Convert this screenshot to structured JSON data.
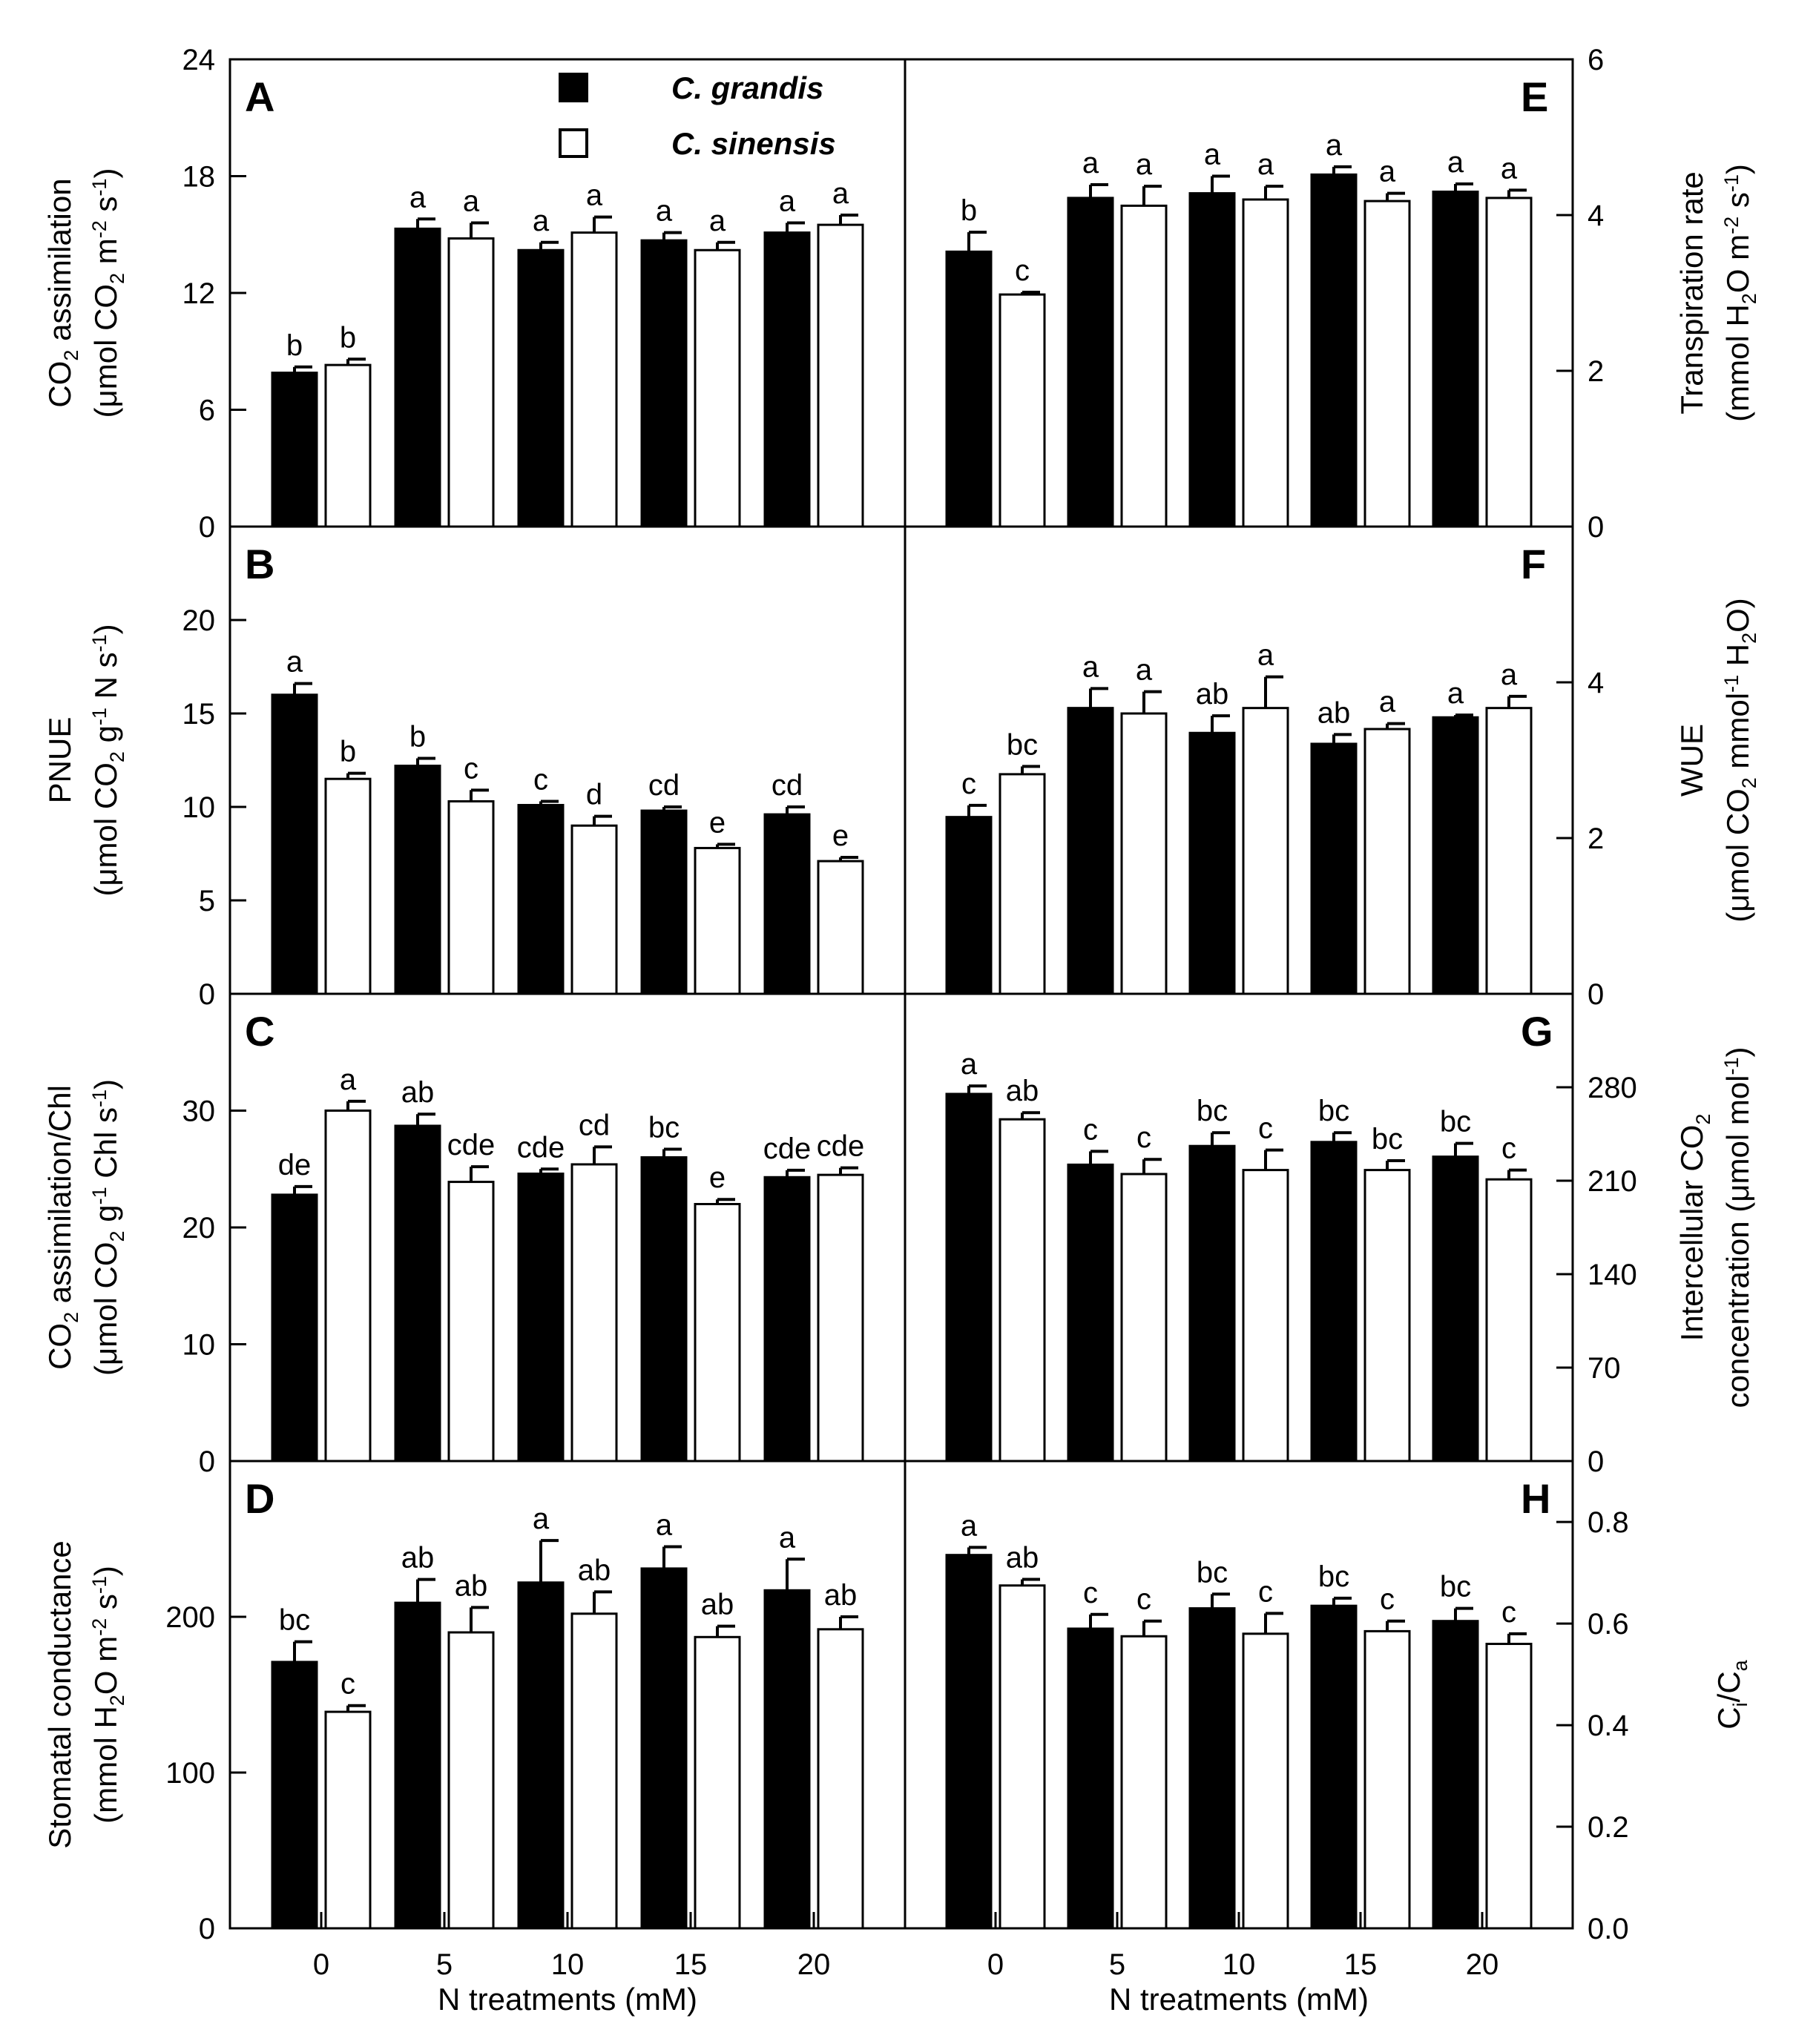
{
  "chart_data": {
    "type": "bar",
    "figure": "Multi-panel grouped bar chart",
    "legend": {
      "entries": [
        {
          "name": "C. grandis",
          "fill": "#000000"
        },
        {
          "name": "C. sinensis",
          "fill": "#ffffff"
        }
      ],
      "placement": "top-center of panel A"
    },
    "x_categories": [
      "0",
      "5",
      "10",
      "15",
      "20"
    ],
    "xlabel": "N treatments (mM)",
    "panels": [
      {
        "letter": "A",
        "column": "left",
        "row": 0,
        "ylabel": [
          [
            "CO",
            "2",
            " assimilation"
          ],
          [
            "(μmol CO",
            "2",
            " m",
            "-2",
            " s",
            "-1",
            ")"
          ]
        ],
        "ylabel_sub": [
          [
            false,
            true,
            false
          ],
          [
            false,
            true,
            false,
            true,
            false,
            true,
            false
          ]
        ],
        "ylim": [
          0,
          24
        ],
        "yticks": [
          "0",
          "6",
          "12",
          "18",
          "24"
        ],
        "series": [
          {
            "name": "C. grandis",
            "values": [
              7.9,
              15.3,
              14.2,
              14.7,
              15.1
            ],
            "errors": [
              0.3,
              0.5,
              0.4,
              0.4,
              0.5
            ],
            "labels": [
              "b",
              "a",
              "a",
              "a",
              "a"
            ]
          },
          {
            "name": "C. sinensis",
            "values": [
              8.3,
              14.8,
              15.1,
              14.2,
              15.5
            ],
            "errors": [
              0.3,
              0.8,
              0.8,
              0.4,
              0.5
            ],
            "labels": [
              "b",
              "a",
              "a",
              "a",
              "a"
            ]
          }
        ]
      },
      {
        "letter": "B",
        "column": "left",
        "row": 1,
        "ylabel": [
          [
            "PNUE"
          ],
          [
            "(μmol CO",
            "2",
            " g",
            "-1",
            " N s",
            "-1",
            ")"
          ]
        ],
        "ylabel_sub": [
          [
            false
          ],
          [
            false,
            true,
            false,
            true,
            false,
            true,
            false
          ]
        ],
        "ylim": [
          0,
          25
        ],
        "yticks": [
          "0",
          "5",
          "10",
          "15",
          "20"
        ],
        "series": [
          {
            "name": "C. grandis",
            "values": [
              16.0,
              12.2,
              10.1,
              9.8,
              9.6
            ],
            "errors": [
              0.6,
              0.4,
              0.2,
              0.2,
              0.4
            ],
            "labels": [
              "a",
              "b",
              "c",
              "cd",
              "cd"
            ]
          },
          {
            "name": "C. sinensis",
            "values": [
              11.5,
              10.3,
              9.0,
              7.8,
              7.1
            ],
            "errors": [
              0.3,
              0.6,
              0.5,
              0.2,
              0.2
            ],
            "labels": [
              "b",
              "c",
              "d",
              "e",
              "e"
            ]
          }
        ]
      },
      {
        "letter": "C",
        "column": "left",
        "row": 2,
        "ylabel": [
          [
            "CO",
            "2",
            " assimilation/Chl"
          ],
          [
            "(μmol CO",
            "2",
            " g",
            "-1",
            " Chl s",
            "-1",
            ")"
          ]
        ],
        "ylabel_sub": [
          [
            false,
            true,
            false
          ],
          [
            false,
            true,
            false,
            true,
            false,
            true,
            false
          ]
        ],
        "ylim": [
          0,
          40
        ],
        "yticks": [
          "0",
          "10",
          "20",
          "30"
        ],
        "series": [
          {
            "name": "C. grandis",
            "values": [
              22.8,
              28.7,
              24.6,
              26.0,
              24.3
            ],
            "errors": [
              0.7,
              1.0,
              0.4,
              0.7,
              0.6
            ],
            "labels": [
              "de",
              "ab",
              "cde",
              "bc",
              "cde"
            ]
          },
          {
            "name": "C. sinensis",
            "values": [
              30.0,
              23.9,
              25.4,
              22.0,
              24.5
            ],
            "errors": [
              0.8,
              1.3,
              1.5,
              0.4,
              0.6
            ],
            "labels": [
              "a",
              "cde",
              "cd",
              "e",
              "cde"
            ]
          }
        ]
      },
      {
        "letter": "D",
        "column": "left",
        "row": 3,
        "ylabel": [
          [
            "Stomatal conductance"
          ],
          [
            "(mmol H",
            "2",
            "O m",
            "-2",
            " s",
            "-1",
            ")"
          ]
        ],
        "ylabel_sub": [
          [
            false
          ],
          [
            false,
            true,
            false,
            true,
            false,
            true,
            false
          ]
        ],
        "ylim": [
          0,
          300
        ],
        "yticks": [
          "0",
          "100",
          "200"
        ],
        "series": [
          {
            "name": "C. grandis",
            "values": [
              171,
              209,
              222,
              231,
              217
            ],
            "errors": [
              13,
              15,
              27,
              14,
              20
            ],
            "labels": [
              "bc",
              "ab",
              "a",
              "a",
              "a"
            ]
          },
          {
            "name": "C. sinensis",
            "values": [
              139,
              190,
              202,
              187,
              192
            ],
            "errors": [
              4,
              16,
              14,
              7,
              8
            ],
            "labels": [
              "c",
              "ab",
              "ab",
              "ab",
              "ab"
            ]
          }
        ]
      },
      {
        "letter": "E",
        "column": "right",
        "row": 0,
        "ylabel": [
          [
            "Transpiration rate"
          ],
          [
            "(mmol H",
            "2",
            "O m",
            "-2",
            " s",
            "-1",
            ")"
          ]
        ],
        "ylabel_sub": [
          [
            false
          ],
          [
            false,
            true,
            false,
            true,
            false,
            true,
            false
          ]
        ],
        "ylim": [
          0,
          6
        ],
        "yticks": [
          "0",
          "2",
          "4",
          "6"
        ],
        "series": [
          {
            "name": "C. grandis",
            "values": [
              3.53,
              4.22,
              4.28,
              4.52,
              4.3
            ],
            "errors": [
              0.25,
              0.17,
              0.22,
              0.1,
              0.1
            ],
            "labels": [
              "b",
              "a",
              "a",
              "a",
              "a"
            ]
          },
          {
            "name": "C. sinensis",
            "values": [
              2.98,
              4.12,
              4.2,
              4.18,
              4.22
            ],
            "errors": [
              0.03,
              0.25,
              0.17,
              0.1,
              0.1
            ],
            "labels": [
              "c",
              "a",
              "a",
              "a",
              "a"
            ]
          }
        ]
      },
      {
        "letter": "F",
        "column": "right",
        "row": 1,
        "ylabel": [
          [
            "WUE"
          ],
          [
            "(μmol CO",
            "2",
            " mmol",
            "-1",
            " H",
            "2",
            "O)"
          ]
        ],
        "ylabel_sub": [
          [
            false
          ],
          [
            false,
            true,
            false,
            true,
            false,
            true,
            false
          ]
        ],
        "ylim": [
          0,
          6
        ],
        "yticks": [
          "0",
          "2",
          "4"
        ],
        "series": [
          {
            "name": "C. grandis",
            "values": [
              2.27,
              3.67,
              3.35,
              3.21,
              3.55
            ],
            "errors": [
              0.15,
              0.25,
              0.22,
              0.12,
              0.03
            ],
            "labels": [
              "c",
              "a",
              "ab",
              "ab",
              "a"
            ]
          },
          {
            "name": "C. sinensis",
            "values": [
              2.82,
              3.6,
              3.67,
              3.4,
              3.67
            ],
            "errors": [
              0.1,
              0.28,
              0.4,
              0.07,
              0.15
            ],
            "labels": [
              "bc",
              "a",
              "a",
              "a",
              "a"
            ]
          }
        ]
      },
      {
        "letter": "G",
        "column": "right",
        "row": 2,
        "ylabel": [
          [
            "Intercellular CO",
            "2"
          ],
          [
            "concentration (μmol mol",
            "-1",
            ")"
          ]
        ],
        "ylabel_sub": [
          [
            false,
            true
          ],
          [
            false,
            true,
            false
          ]
        ],
        "ylim": [
          0,
          350
        ],
        "yticks": [
          "0",
          "70",
          "140",
          "210",
          "280"
        ],
        "series": [
          {
            "name": "C. grandis",
            "values": [
              275,
              222,
              236,
              239,
              228
            ],
            "errors": [
              6,
              10,
              10,
              7,
              10
            ],
            "labels": [
              "a",
              "c",
              "bc",
              "bc",
              "bc"
            ]
          },
          {
            "name": "C. sinensis",
            "values": [
              256,
              215,
              218,
              218,
              211
            ],
            "errors": [
              5,
              11,
              15,
              7,
              7
            ],
            "labels": [
              "ab",
              "c",
              "c",
              "bc",
              "c"
            ]
          }
        ]
      },
      {
        "letter": "H",
        "column": "right",
        "row": 3,
        "ylabel": [
          [
            "C",
            "i",
            "/C",
            "a"
          ]
        ],
        "ylabel_sub": [
          [
            false,
            true,
            false,
            true
          ]
        ],
        "ylim": [
          0,
          0.92
        ],
        "yticks": [
          "0.0",
          "0.2",
          "0.4",
          "0.6",
          "0.8"
        ],
        "series": [
          {
            "name": "C. grandis",
            "values": [
              0.735,
              0.59,
              0.63,
              0.635,
              0.605
            ],
            "errors": [
              0.015,
              0.028,
              0.028,
              0.015,
              0.025
            ],
            "labels": [
              "a",
              "c",
              "bc",
              "bc",
              "bc"
            ]
          },
          {
            "name": "C. sinensis",
            "values": [
              0.675,
              0.575,
              0.58,
              0.585,
              0.56
            ],
            "errors": [
              0.012,
              0.03,
              0.04,
              0.02,
              0.02
            ],
            "labels": [
              "ab",
              "c",
              "c",
              "c",
              "c"
            ]
          }
        ]
      }
    ]
  }
}
